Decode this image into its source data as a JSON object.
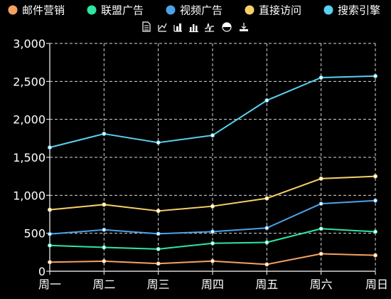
{
  "chart_data": {
    "type": "line",
    "categories": [
      "周一",
      "周二",
      "周三",
      "周四",
      "周五",
      "周六",
      "周日"
    ],
    "ylim": [
      0,
      3000
    ],
    "yticks": [
      0,
      500,
      1000,
      1500,
      2000,
      2500,
      3000
    ],
    "ytick_labels": [
      "0",
      "500",
      "1,000",
      "1,500",
      "2,000",
      "2,500",
      "3,000"
    ],
    "grid": true,
    "legend_position": "top",
    "title": "",
    "xlabel": "",
    "ylabel": "",
    "series": [
      {
        "name": "邮件营销",
        "color": "#f4a261",
        "values": [
          120,
          132,
          101,
          134,
          90,
          230,
          210
        ]
      },
      {
        "name": "联盟广告",
        "color": "#2ee6a0",
        "values": [
          340,
          314,
          292,
          368,
          380,
          560,
          520
        ]
      },
      {
        "name": "视频广告",
        "color": "#4aa3ea",
        "values": [
          490,
          546,
          493,
          522,
          570,
          890,
          930
        ]
      },
      {
        "name": "直接访问",
        "color": "#f7d068",
        "values": [
          810,
          878,
          794,
          856,
          960,
          1220,
          1250
        ]
      },
      {
        "name": "搜索引擎",
        "color": "#5ad1f0",
        "values": [
          1630,
          1810,
          1694,
          1790,
          2250,
          2550,
          2570
        ]
      }
    ]
  },
  "toolbox": {
    "icons": [
      "data-view-icon",
      "line-chart-icon",
      "bar-chart-icon",
      "bar-stack-icon",
      "area-icon",
      "restore-icon",
      "save-image-icon"
    ]
  }
}
